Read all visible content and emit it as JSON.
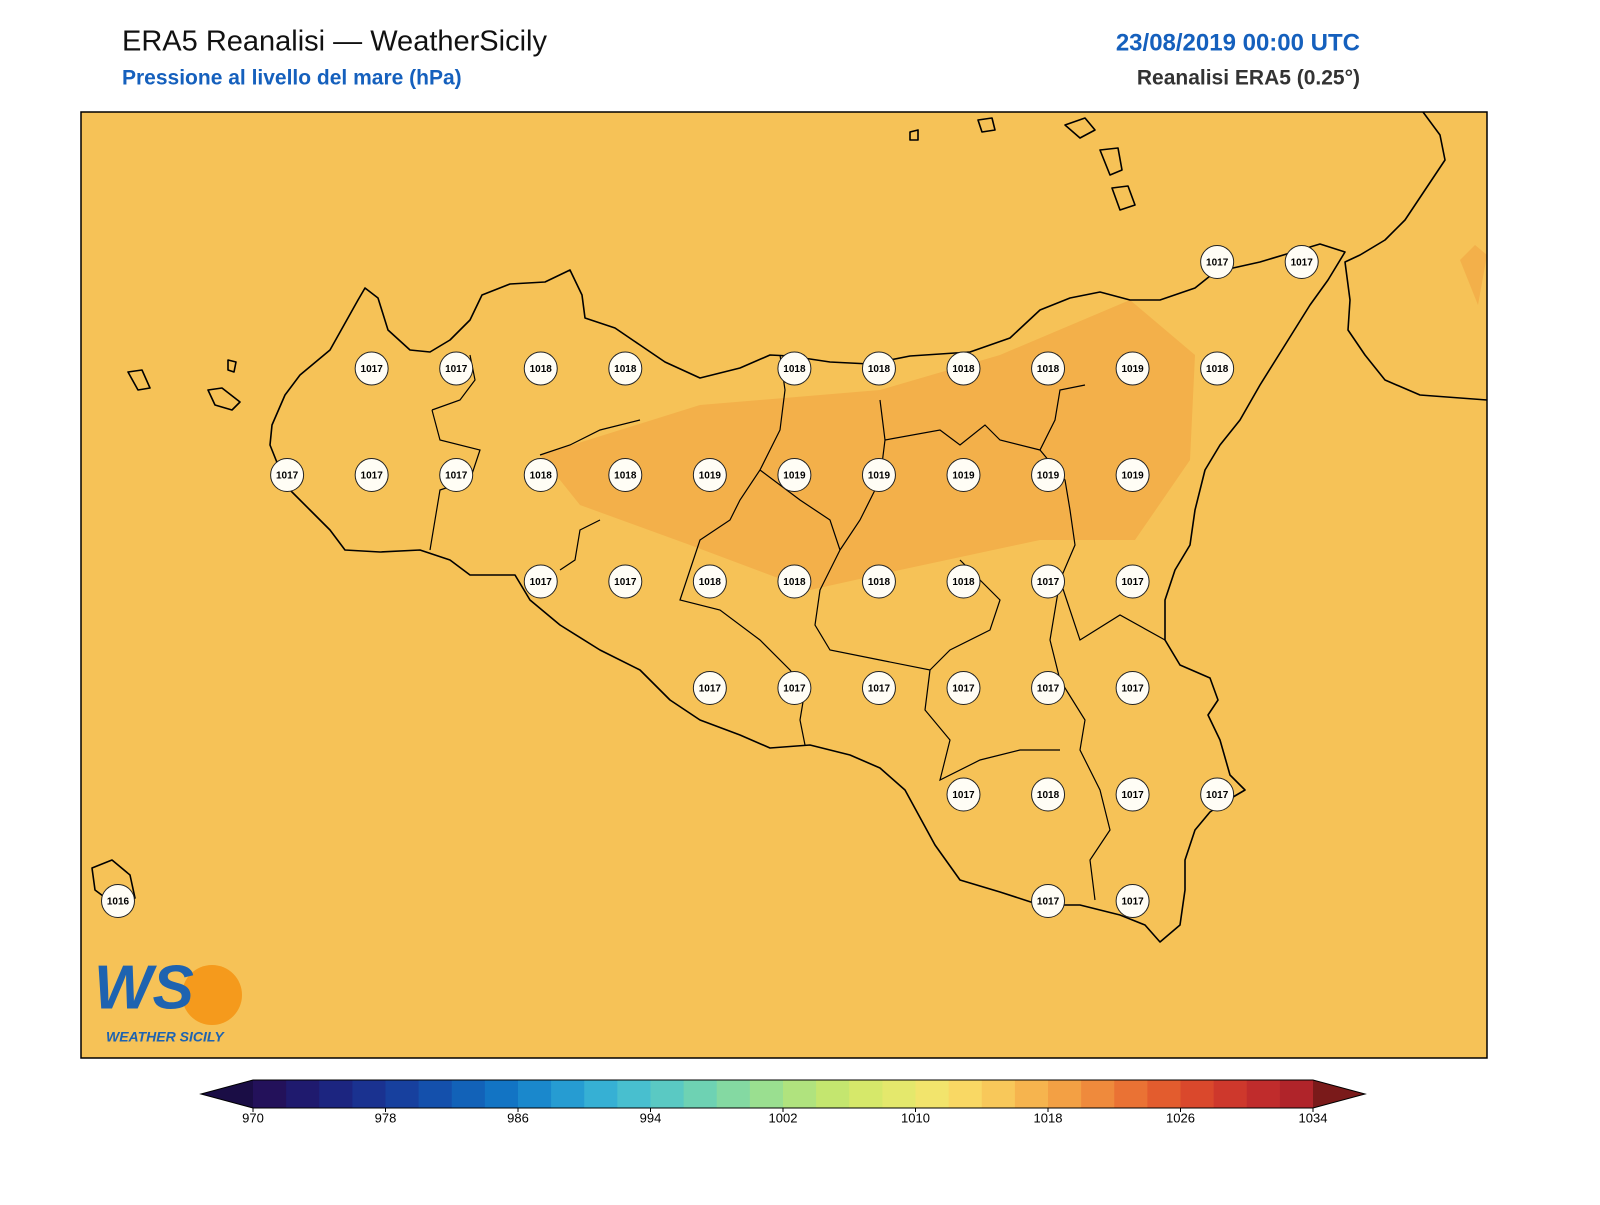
{
  "header": {
    "title": "ERA5 Reanalisi — WeatherSicily",
    "subtitle": "Pressione al livello del mare (hPa)",
    "date": "23/08/2019 00:00 UTC",
    "source": "Reanalisi ERA5 (0.25°)"
  },
  "pressure_grid": [
    [
      null,
      null,
      null,
      null,
      null,
      null,
      null,
      null,
      null,
      null,
      null,
      null,
      null,
      1017,
      1017
    ],
    [
      null,
      null,
      null,
      1017,
      1017,
      1018,
      1018,
      null,
      1018,
      1018,
      1018,
      1018,
      1019,
      1018,
      null
    ],
    [
      null,
      null,
      1017,
      1017,
      1017,
      1018,
      1018,
      1019,
      1019,
      1019,
      1019,
      1019,
      1019,
      null,
      null
    ],
    [
      null,
      null,
      null,
      null,
      null,
      1017,
      1017,
      1018,
      1018,
      1018,
      1018,
      1017,
      1017,
      null,
      null
    ],
    [
      null,
      null,
      null,
      null,
      null,
      null,
      null,
      1017,
      1017,
      1017,
      1017,
      1017,
      1017,
      null,
      null
    ],
    [
      null,
      null,
      null,
      null,
      null,
      null,
      null,
      null,
      null,
      null,
      1017,
      1018,
      1017,
      1017,
      null
    ],
    [
      1016,
      null,
      null,
      null,
      null,
      null,
      null,
      null,
      null,
      null,
      null,
      1017,
      1017,
      null,
      null
    ]
  ],
  "colorbar": {
    "lim": [
      970,
      1034
    ],
    "ticks": [
      970,
      978,
      986,
      994,
      1002,
      1010,
      1018,
      1026,
      1034
    ],
    "under": "#1a0d45",
    "over": "#7a1a1a",
    "colors": [
      "#23115a",
      "#1f1a6e",
      "#1c2580",
      "#1a3290",
      "#17409e",
      "#1450ac",
      "#1262b8",
      "#1274c4",
      "#1a88cc",
      "#269cd2",
      "#36b0d4",
      "#48bfcf",
      "#5ac9c3",
      "#6ed2b3",
      "#84d9a2",
      "#9adf90",
      "#b0e37e",
      "#c4e66f",
      "#d6e86a",
      "#e4e86c",
      "#f2e46c",
      "#f9d864",
      "#f8c85a",
      "#f6b44e",
      "#f3a044",
      "#ef8a3c",
      "#ea7234",
      "#e35c2e",
      "#da482c",
      "#ce382c",
      "#c02c2c",
      "#b0242a"
    ]
  },
  "logo": {
    "mark": "WS",
    "text": "WEATHER SICILY"
  }
}
